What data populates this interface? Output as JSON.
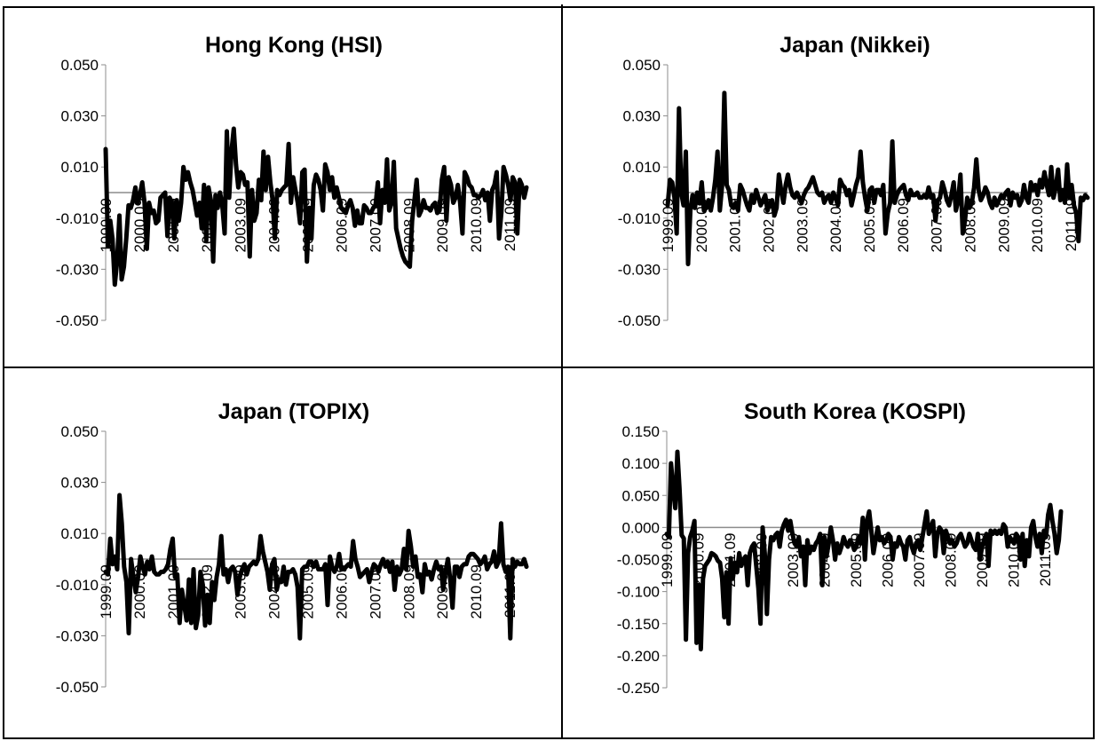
{
  "chart_data": [
    {
      "type": "line",
      "title": "Hong Kong (HSI)",
      "ylim": [
        -0.05,
        0.05
      ],
      "yticks": [
        "0.050",
        "0.030",
        "0.010",
        "-0.010",
        "-0.030",
        "-0.050"
      ],
      "x_ticks": [
        "1999.09",
        "2000.09",
        "2001.09",
        "2002.09",
        "2003.09",
        "2004.09",
        "2005.09",
        "2006.09",
        "2007.09",
        "2008.09",
        "2009.09",
        "2010.09",
        "2011.09"
      ],
      "x_start": "1999.09",
      "x_end": "2012.03",
      "line_color": "#000000",
      "zero_line_color": "#8c8c8c",
      "values": [
        0.017,
        -0.021,
        -0.011,
        -0.018,
        -0.036,
        -0.027,
        -0.009,
        -0.034,
        -0.029,
        -0.018,
        -0.005,
        -0.006,
        -0.003,
        0.002,
        -0.004,
        -0.001,
        0.004,
        -0.004,
        -0.022,
        -0.004,
        -0.008,
        -0.007,
        -0.012,
        -0.011,
        -0.002,
        -0.001,
        0.0,
        -0.017,
        -0.002,
        -0.004,
        -0.018,
        -0.003,
        -0.011,
        -0.004,
        0.01,
        0.005,
        0.008,
        0.004,
        0.001,
        -0.004,
        -0.009,
        -0.004,
        -0.014,
        0.003,
        -0.019,
        0.002,
        -0.003,
        -0.027,
        -0.001,
        -0.006,
        0.0,
        -0.005,
        -0.016,
        0.024,
        -0.002,
        0.016,
        0.025,
        0.011,
        0.002,
        0.008,
        0.007,
        0.003,
        0.004,
        -0.025,
        0.001,
        -0.011,
        -0.008,
        0.005,
        -0.003,
        0.016,
        0.001,
        0.014,
        0.004,
        -0.003,
        -0.018,
        0.001,
        -0.001,
        0.001,
        0.002,
        0.003,
        0.019,
        -0.004,
        0.006,
        0.001,
        -0.004,
        -0.012,
        0.008,
        0.009,
        -0.027,
        -0.006,
        -0.018,
        0.003,
        0.007,
        0.005,
        0.001,
        -0.007,
        0.011,
        0.008,
        0.001,
        0.006,
        -0.002,
        0.002,
        -0.002,
        -0.006,
        -0.007,
        -0.008,
        -0.005,
        -0.003,
        -0.006,
        -0.013,
        -0.007,
        -0.012,
        -0.012,
        -0.005,
        -0.006,
        -0.008,
        -0.008,
        -0.006,
        -0.005,
        0.004,
        -0.012,
        0.001,
        -0.004,
        0.013,
        -0.007,
        -0.004,
        0.012,
        -0.014,
        -0.018,
        -0.022,
        -0.025,
        -0.027,
        -0.028,
        -0.029,
        -0.011,
        -0.003,
        0.005,
        -0.009,
        -0.007,
        -0.003,
        -0.006,
        -0.006,
        -0.007,
        -0.005,
        -0.004,
        -0.008,
        -0.007,
        0.005,
        0.01,
        -0.011,
        0.006,
        0.003,
        -0.004,
        -0.002,
        0.003,
        -0.004,
        -0.016,
        0.008,
        0.006,
        0.003,
        0.002,
        -0.001,
        -0.001,
        -0.002,
        -0.001,
        0.001,
        -0.003,
        0.0,
        -0.011,
        0.001,
        0.003,
        0.008,
        -0.018,
        -0.008,
        0.01,
        0.007,
        0.003,
        -0.003,
        0.006,
        0.004,
        -0.016,
        0.005,
        0.003,
        -0.002,
        0.002
      ]
    },
    {
      "type": "line",
      "title": "Japan (Nikkei)",
      "ylim": [
        -0.05,
        0.05
      ],
      "yticks": [
        "0.050",
        "0.030",
        "0.010",
        "-0.010",
        "-0.030",
        "-0.050"
      ],
      "x_ticks": [
        "1999.09",
        "2000.09",
        "2001.09",
        "2002.09",
        "2003.09",
        "2004.09",
        "2005.09",
        "2006.09",
        "2007.09",
        "2008.09",
        "2009.09",
        "2010.09",
        "2011.09"
      ],
      "x_start": "1999.09",
      "x_end": "2012.03",
      "line_color": "#000000",
      "zero_line_color": "#8c8c8c",
      "values": [
        -0.005,
        0.005,
        0.004,
        -0.002,
        -0.016,
        0.033,
        0.0,
        -0.005,
        0.016,
        -0.028,
        -0.007,
        -0.001,
        -0.006,
        0.0,
        -0.004,
        0.004,
        -0.007,
        -0.006,
        -0.003,
        -0.007,
        -0.002,
        0.005,
        0.016,
        -0.007,
        0.003,
        0.039,
        0.003,
        0.001,
        -0.005,
        -0.006,
        -0.004,
        -0.007,
        0.003,
        0.001,
        -0.002,
        -0.005,
        -0.007,
        -0.001,
        -0.004,
        0.001,
        -0.002,
        -0.005,
        -0.003,
        -0.001,
        -0.007,
        -0.004,
        -0.003,
        -0.009,
        -0.006,
        0.007,
        0.001,
        -0.004,
        0.003,
        0.007,
        0.002,
        -0.001,
        -0.002,
        0.0,
        -0.002,
        -0.004,
        -0.001,
        0.001,
        0.002,
        0.004,
        0.006,
        0.003,
        0.0,
        -0.001,
        0.0,
        -0.004,
        -0.002,
        -0.001,
        -0.004,
        0.0,
        -0.002,
        -0.005,
        0.005,
        0.003,
        0.002,
        -0.001,
        0.001,
        -0.005,
        -0.001,
        0.003,
        0.006,
        0.016,
        0.004,
        -0.002,
        -0.007,
        0.001,
        0.002,
        -0.004,
        0.001,
        0.001,
        -0.001,
        0.003,
        -0.016,
        -0.008,
        -0.004,
        0.02,
        -0.004,
        -0.001,
        0.001,
        0.002,
        0.003,
        -0.001,
        -0.003,
        0.001,
        -0.001,
        -0.001,
        0.0,
        -0.002,
        -0.002,
        -0.001,
        -0.002,
        0.002,
        -0.002,
        -0.001,
        -0.011,
        -0.003,
        -0.002,
        0.004,
        0.001,
        -0.003,
        -0.005,
        -0.001,
        0.004,
        -0.007,
        -0.003,
        0.007,
        -0.016,
        -0.011,
        -0.002,
        -0.006,
        -0.004,
        0.002,
        0.013,
        0.001,
        -0.003,
        -0.001,
        0.002,
        0.0,
        -0.004,
        -0.006,
        -0.002,
        -0.005,
        -0.003,
        -0.001,
        -0.002,
        0.0,
        0.001,
        -0.005,
        0.0,
        -0.002,
        -0.001,
        -0.005,
        -0.003,
        0.003,
        -0.002,
        -0.004,
        0.004,
        0.001,
        0.003,
        -0.001,
        0.005,
        0.002,
        0.008,
        0.003,
        -0.001,
        0.01,
        -0.002,
        0.002,
        0.009,
        -0.003,
        0.001,
        -0.004,
        0.011,
        -0.002,
        0.003,
        -0.005,
        -0.008,
        -0.019,
        -0.002,
        -0.003,
        -0.001,
        -0.002
      ]
    },
    {
      "type": "line",
      "title": "Japan (TOPIX)",
      "ylim": [
        -0.05,
        0.05
      ],
      "yticks": [
        "0.050",
        "0.030",
        "0.010",
        "-0.010",
        "-0.030",
        "-0.050"
      ],
      "x_ticks": [
        "1999.09",
        "2000.09",
        "2001.09",
        "2002.09",
        "2003.09",
        "2004.09",
        "2005.09",
        "2006.09",
        "2007.09",
        "2008.09",
        "2009.09",
        "2010.09",
        "2011.09"
      ],
      "x_start": "1999.09",
      "x_end": "2012.03",
      "line_color": "#000000",
      "zero_line_color": "#8c8c8c",
      "values": [
        -0.005,
        -0.006,
        0.008,
        -0.002,
        0.001,
        -0.004,
        0.025,
        0.014,
        -0.003,
        -0.009,
        -0.029,
        0.0,
        -0.007,
        -0.013,
        -0.007,
        0.001,
        -0.003,
        -0.006,
        -0.001,
        -0.004,
        0.001,
        -0.005,
        -0.006,
        -0.006,
        -0.005,
        -0.005,
        -0.004,
        -0.002,
        0.004,
        0.008,
        -0.007,
        -0.006,
        -0.025,
        -0.012,
        -0.018,
        -0.024,
        -0.008,
        -0.025,
        -0.004,
        -0.027,
        -0.022,
        -0.005,
        -0.01,
        -0.026,
        -0.014,
        -0.025,
        -0.009,
        -0.016,
        -0.007,
        -0.002,
        0.009,
        -0.006,
        -0.004,
        -0.009,
        -0.004,
        -0.003,
        -0.005,
        -0.014,
        -0.007,
        -0.004,
        -0.002,
        -0.006,
        -0.003,
        -0.002,
        -0.001,
        -0.002,
        0.0,
        0.009,
        0.003,
        -0.001,
        -0.005,
        -0.012,
        -0.002,
        0.0,
        -0.012,
        -0.008,
        -0.009,
        -0.003,
        -0.01,
        -0.005,
        -0.005,
        -0.004,
        -0.006,
        -0.011,
        -0.031,
        -0.004,
        -0.003,
        -0.003,
        -0.001,
        -0.001,
        -0.003,
        -0.001,
        -0.004,
        -0.004,
        -0.004,
        -0.002,
        -0.018,
        0.001,
        -0.003,
        -0.005,
        -0.003,
        0.002,
        -0.004,
        -0.004,
        -0.003,
        -0.002,
        -0.003,
        0.007,
        0.0,
        -0.003,
        -0.007,
        -0.006,
        -0.005,
        -0.004,
        -0.009,
        -0.005,
        -0.002,
        -0.003,
        -0.005,
        -0.002,
        0.0,
        -0.003,
        -0.001,
        -0.005,
        -0.001,
        -0.012,
        -0.003,
        -0.006,
        -0.004,
        0.004,
        -0.004,
        0.011,
        0.005,
        -0.003,
        0.001,
        -0.007,
        -0.006,
        -0.013,
        -0.002,
        -0.006,
        -0.005,
        -0.008,
        -0.004,
        -0.001,
        -0.004,
        -0.003,
        -0.012,
        -0.005,
        0.0,
        -0.008,
        -0.019,
        -0.003,
        -0.003,
        -0.007,
        -0.003,
        -0.002,
        -0.002,
        0.001,
        0.002,
        0.002,
        0.001,
        0.0,
        -0.002,
        -0.001,
        0.001,
        -0.004,
        -0.002,
        -0.001,
        0.003,
        -0.003,
        -0.001,
        0.014,
        -0.002,
        -0.005,
        -0.003,
        -0.031,
        0.0,
        -0.003,
        -0.001,
        -0.002,
        -0.002,
        0.0,
        -0.003
      ]
    },
    {
      "type": "line",
      "title": "South Korea (KOSPI)",
      "ylim": [
        -0.25,
        0.15
      ],
      "yticks": [
        "0.150",
        "0.100",
        "0.050",
        "0.000",
        "-0.050",
        "-0.100",
        "-0.150",
        "-0.200",
        "-0.250"
      ],
      "x_ticks": [
        "1999.09",
        "2000.09",
        "2001.09",
        "2002.09",
        "2003.09",
        "2004.09",
        "2005.09",
        "2006.09",
        "2007.09",
        "2008.09",
        "2009.09",
        "2010.09",
        "2011.09"
      ],
      "x_start": "1999.09",
      "x_end": "2012.03",
      "line_color": "#000000",
      "zero_line_color": "#8c8c8c",
      "values": [
        -0.01,
        -0.015,
        0.1,
        0.06,
        0.03,
        0.118,
        0.06,
        -0.012,
        -0.017,
        -0.175,
        -0.04,
        -0.015,
        -0.005,
        0.01,
        -0.18,
        -0.09,
        -0.19,
        -0.08,
        -0.06,
        -0.055,
        -0.05,
        -0.04,
        -0.042,
        -0.045,
        -0.052,
        -0.055,
        -0.08,
        -0.14,
        -0.07,
        -0.15,
        -0.048,
        -0.08,
        -0.055,
        -0.07,
        -0.04,
        -0.06,
        -0.05,
        -0.045,
        -0.09,
        -0.04,
        -0.03,
        -0.025,
        -0.06,
        -0.095,
        -0.15,
        0.0,
        -0.04,
        -0.135,
        -0.05,
        -0.015,
        -0.02,
        -0.012,
        -0.008,
        -0.03,
        -0.005,
        0.005,
        0.012,
        -0.005,
        0.01,
        -0.01,
        -0.025,
        -0.03,
        -0.015,
        -0.045,
        -0.03,
        -0.09,
        -0.02,
        -0.04,
        -0.03,
        -0.035,
        -0.025,
        -0.02,
        -0.01,
        -0.09,
        -0.015,
        -0.045,
        -0.025,
        0.0,
        -0.02,
        -0.05,
        -0.025,
        -0.04,
        -0.03,
        -0.015,
        -0.025,
        -0.03,
        -0.02,
        -0.025,
        -0.035,
        -0.03,
        -0.015,
        -0.025,
        0.015,
        -0.05,
        0.01,
        0.025,
        -0.005,
        -0.04,
        -0.02,
        0.0,
        -0.02,
        -0.015,
        -0.025,
        -0.02,
        -0.01,
        -0.015,
        -0.05,
        -0.025,
        -0.03,
        -0.015,
        -0.025,
        -0.03,
        -0.05,
        -0.02,
        -0.015,
        -0.03,
        -0.04,
        -0.025,
        -0.02,
        -0.035,
        -0.015,
        0.005,
        0.025,
        -0.01,
        0.0,
        0.01,
        -0.045,
        -0.01,
        0.0,
        -0.005,
        -0.04,
        -0.005,
        -0.015,
        -0.025,
        -0.02,
        -0.03,
        -0.025,
        -0.015,
        -0.01,
        -0.02,
        -0.03,
        -0.025,
        -0.01,
        -0.02,
        -0.03,
        -0.035,
        -0.01,
        -0.05,
        -0.03,
        -0.02,
        -0.01,
        -0.06,
        -0.005,
        -0.01,
        -0.005,
        -0.01,
        -0.005,
        -0.01,
        0.005,
        0.0,
        -0.03,
        -0.015,
        -0.02,
        -0.025,
        -0.01,
        -0.015,
        -0.05,
        -0.01,
        -0.06,
        -0.02,
        -0.045,
        0.0,
        0.01,
        -0.015,
        -0.03,
        -0.01,
        -0.04,
        -0.005,
        -0.015,
        0.02,
        0.035,
        0.01,
        -0.01,
        -0.04,
        -0.02,
        0.025
      ]
    }
  ]
}
